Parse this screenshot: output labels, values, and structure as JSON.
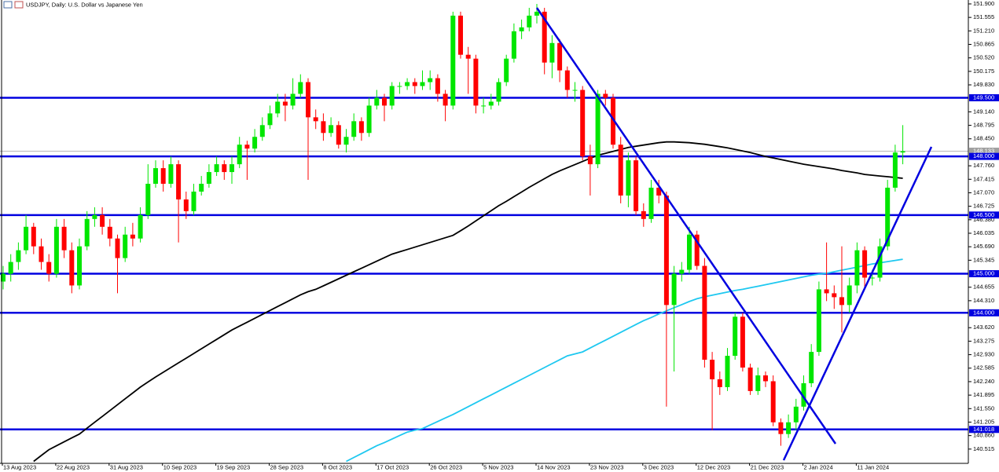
{
  "chart_data": {
    "type": "candlestick",
    "title": "USDJPY, Daily:  U.S. Dollar vs Japanese Yen",
    "categories": [
      "13 Aug 2023",
      null,
      null,
      null,
      null,
      null,
      null,
      "22 Aug 2023",
      null,
      null,
      null,
      null,
      null,
      null,
      "31 Aug 2023",
      null,
      null,
      null,
      null,
      null,
      null,
      "10 Sep 2023",
      null,
      null,
      null,
      null,
      null,
      null,
      "19 Sep 2023",
      null,
      null,
      null,
      null,
      null,
      null,
      "28 Sep 2023",
      null,
      null,
      null,
      null,
      null,
      null,
      "8 Oct 2023",
      null,
      null,
      null,
      null,
      null,
      null,
      "17 Oct 2023",
      null,
      null,
      null,
      null,
      null,
      null,
      "26 Oct 2023",
      null,
      null,
      null,
      null,
      null,
      null,
      "5 Nov 2023",
      null,
      null,
      null,
      null,
      null,
      null,
      "14 Nov 2023",
      null,
      null,
      null,
      null,
      null,
      null,
      "23 Nov 2023",
      null,
      null,
      null,
      null,
      null,
      null,
      "3 Dec 2023",
      null,
      null,
      null,
      null,
      null,
      null,
      "12 Dec 2023",
      null,
      null,
      null,
      null,
      null,
      null,
      "21 Dec 2023",
      null,
      null,
      null,
      null,
      null,
      null,
      "2 Jan 2024",
      null,
      null,
      null,
      null,
      null,
      null,
      "11 Jan 2024",
      null,
      null,
      null,
      null,
      null,
      null
    ],
    "open": [
      144.8,
      145.0,
      145.3,
      145.6,
      146.2,
      145.7,
      145.3,
      145.0,
      146.2,
      145.6,
      144.7,
      145.7,
      146.4,
      146.5,
      146.2,
      145.9,
      145.4,
      146.0,
      145.9,
      146.5,
      147.3,
      147.7,
      147.3,
      147.8,
      146.9,
      146.6,
      147.1,
      147.3,
      147.6,
      147.8,
      147.6,
      147.8,
      148.3,
      148.2,
      148.5,
      148.8,
      149.1,
      149.4,
      149.3,
      149.6,
      149.9,
      149.0,
      148.9,
      148.6,
      148.8,
      148.3,
      148.5,
      148.9,
      148.6,
      149.3,
      149.5,
      149.3,
      149.8,
      149.8,
      149.9,
      149.8,
      149.9,
      150.0,
      149.6,
      149.3,
      151.6,
      150.6,
      150.5,
      149.3,
      149.3,
      149.4,
      149.9,
      150.5,
      151.2,
      151.3,
      151.6,
      151.7,
      150.4,
      150.9,
      150.2,
      149.7,
      149.7,
      148.0,
      147.8,
      149.6,
      149.5,
      148.3,
      147.0,
      147.9,
      146.6,
      146.4,
      147.2,
      147.0,
      144.2,
      145.0,
      145.1,
      146.0,
      145.2,
      142.8,
      142.3,
      142.1,
      142.9,
      143.9,
      142.6,
      142.0,
      142.4,
      142.25,
      141.2,
      140.9,
      141.2,
      141.6,
      142.2,
      143.0,
      144.6,
      144.5,
      144.4,
      144.2,
      144.7,
      145.6,
      144.9,
      144.9,
      145.7,
      147.2,
      148.1
    ],
    "high": [
      145.2,
      145.5,
      145.8,
      146.5,
      146.3,
      145.9,
      145.5,
      146.4,
      146.4,
      145.8,
      145.9,
      146.6,
      146.7,
      146.7,
      146.4,
      146.0,
      146.2,
      146.3,
      146.7,
      147.8,
      147.9,
      147.9,
      148.0,
      147.9,
      147.1,
      147.3,
      147.5,
      147.8,
      148.0,
      147.9,
      148.0,
      148.5,
      148.4,
      148.7,
      149.0,
      149.3,
      149.6,
      149.6,
      150.0,
      150.1,
      150.0,
      149.2,
      149.1,
      149.0,
      148.9,
      148.7,
      149.1,
      149.0,
      149.5,
      149.7,
      149.6,
      149.9,
      149.9,
      150.0,
      150.0,
      150.2,
      150.2,
      150.1,
      149.7,
      151.7,
      151.7,
      150.8,
      150.6,
      149.5,
      149.6,
      150.0,
      150.6,
      151.4,
      151.5,
      151.8,
      151.9,
      151.8,
      151.1,
      151.0,
      150.3,
      149.9,
      149.8,
      148.3,
      149.7,
      149.7,
      149.6,
      148.5,
      148.1,
      148.0,
      146.8,
      147.4,
      147.4,
      147.1,
      145.2,
      145.3,
      146.2,
      146.1,
      145.4,
      143.0,
      142.5,
      143.1,
      144.0,
      144.0,
      142.7,
      142.6,
      142.5,
      142.4,
      141.3,
      141.4,
      141.8,
      142.4,
      143.2,
      144.8,
      145.8,
      144.7,
      145.7,
      144.9,
      145.8,
      145.7,
      145.1,
      145.9,
      147.4,
      148.3,
      148.8
    ],
    "low": [
      144.6,
      144.8,
      145.1,
      145.5,
      145.5,
      145.1,
      144.8,
      144.9,
      145.4,
      144.5,
      144.6,
      145.6,
      146.2,
      146.0,
      145.7,
      144.5,
      145.3,
      145.7,
      145.8,
      146.4,
      147.2,
      147.1,
      147.2,
      145.8,
      146.4,
      146.5,
      147.0,
      147.2,
      147.5,
      147.4,
      147.3,
      147.7,
      147.4,
      148.1,
      148.4,
      148.7,
      149.0,
      148.9,
      149.2,
      149.5,
      147.4,
      148.7,
      148.4,
      148.5,
      148.2,
      148.1,
      148.4,
      148.4,
      148.5,
      149.2,
      148.9,
      149.2,
      149.6,
      149.7,
      149.6,
      149.7,
      149.7,
      149.4,
      148.9,
      149.2,
      150.5,
      149.6,
      149.1,
      149.1,
      149.2,
      149.3,
      149.8,
      150.4,
      151.0,
      151.2,
      151.4,
      150.1,
      150.0,
      149.9,
      149.5,
      149.4,
      147.9,
      147.0,
      147.7,
      149.3,
      148.2,
      146.8,
      146.7,
      146.5,
      146.2,
      146.3,
      146.8,
      141.6,
      142.5,
      144.8,
      145.0,
      145.1,
      142.6,
      141.0,
      141.9,
      142.0,
      142.8,
      142.5,
      141.9,
      141.9,
      142.1,
      141.1,
      140.6,
      140.8,
      141.0,
      141.5,
      142.1,
      142.9,
      144.3,
      144.1,
      143.5,
      144.0,
      144.5,
      144.6,
      144.7,
      144.8,
      145.6,
      147.1,
      147.8
    ],
    "close": [
      145.0,
      145.3,
      145.6,
      146.2,
      145.7,
      145.3,
      145.0,
      146.2,
      145.6,
      144.7,
      145.7,
      146.4,
      146.5,
      146.2,
      145.9,
      145.4,
      146.0,
      145.9,
      146.5,
      147.3,
      147.7,
      147.3,
      147.8,
      146.9,
      146.6,
      147.1,
      147.3,
      147.6,
      147.8,
      147.6,
      147.8,
      148.3,
      148.2,
      148.5,
      148.8,
      149.1,
      149.4,
      149.3,
      149.6,
      149.9,
      149.0,
      148.9,
      148.6,
      148.8,
      148.3,
      148.5,
      148.9,
      148.6,
      149.3,
      149.5,
      149.3,
      149.8,
      149.8,
      149.9,
      149.8,
      149.9,
      150.0,
      149.6,
      149.3,
      151.6,
      150.6,
      150.5,
      149.3,
      149.3,
      149.4,
      149.9,
      150.5,
      151.2,
      151.3,
      151.6,
      151.7,
      150.4,
      150.9,
      150.2,
      149.7,
      149.7,
      148.0,
      147.8,
      149.6,
      149.5,
      148.3,
      147.0,
      147.9,
      146.6,
      146.4,
      147.2,
      147.0,
      144.2,
      145.0,
      145.1,
      146.0,
      145.2,
      142.8,
      142.3,
      142.1,
      142.9,
      143.9,
      142.6,
      142.0,
      142.4,
      142.25,
      141.2,
      140.9,
      141.2,
      141.6,
      142.2,
      143.0,
      144.6,
      144.5,
      144.4,
      144.2,
      144.7,
      145.6,
      144.9,
      144.9,
      145.7,
      147.2,
      148.1,
      148.133
    ],
    "up_color": "#00e600",
    "down_color": "#ff0000",
    "moving_averages": [
      {
        "color": "#000000",
        "values": [
          null,
          null,
          null,
          null,
          140.2,
          140.35,
          140.5,
          140.6,
          140.7,
          140.8,
          140.9,
          141.05,
          141.2,
          141.35,
          141.5,
          141.65,
          141.8,
          141.95,
          142.1,
          142.23,
          142.36,
          142.48,
          142.6,
          142.72,
          142.84,
          142.96,
          143.08,
          143.2,
          143.32,
          143.44,
          143.56,
          143.66,
          143.76,
          143.86,
          143.96,
          144.06,
          144.16,
          144.26,
          144.36,
          144.46,
          144.54,
          144.6,
          144.69,
          144.78,
          144.87,
          144.96,
          145.05,
          145.14,
          145.23,
          145.32,
          145.41,
          145.5,
          145.56,
          145.62,
          145.68,
          145.74,
          145.8,
          145.86,
          145.92,
          145.98,
          146.1,
          146.22,
          146.35,
          146.48,
          146.61,
          146.74,
          146.85,
          146.97,
          147.09,
          147.21,
          147.32,
          147.43,
          147.54,
          147.63,
          147.71,
          147.79,
          147.87,
          147.95,
          148.03,
          148.08,
          148.13,
          148.18,
          148.23,
          148.26,
          148.29,
          148.32,
          148.35,
          148.37,
          148.37,
          148.36,
          148.35,
          148.33,
          148.31,
          148.28,
          148.25,
          148.22,
          148.18,
          148.14,
          148.1,
          148.05,
          148.0,
          147.96,
          147.92,
          147.88,
          147.84,
          147.8,
          147.77,
          147.74,
          147.71,
          147.68,
          147.64,
          147.61,
          147.58,
          147.54,
          147.52,
          147.5,
          147.48,
          147.46,
          147.44
        ]
      },
      {
        "color": "#1ec8f0",
        "values": [
          null,
          null,
          null,
          null,
          null,
          null,
          null,
          null,
          null,
          null,
          null,
          null,
          null,
          null,
          null,
          null,
          null,
          null,
          null,
          null,
          null,
          null,
          null,
          null,
          null,
          null,
          null,
          null,
          null,
          null,
          null,
          null,
          null,
          null,
          null,
          null,
          null,
          null,
          null,
          null,
          null,
          null,
          null,
          null,
          null,
          140.2,
          140.3,
          140.4,
          140.5,
          140.6,
          140.68,
          140.77,
          140.86,
          140.95,
          141.0,
          141.04,
          141.13,
          141.22,
          141.31,
          141.4,
          141.5,
          141.6,
          141.7,
          141.8,
          141.9,
          142.0,
          142.1,
          142.2,
          142.3,
          142.4,
          142.5,
          142.6,
          142.7,
          142.8,
          142.9,
          142.95,
          143.0,
          143.1,
          143.2,
          143.3,
          143.4,
          143.5,
          143.6,
          143.7,
          143.8,
          143.88,
          143.97,
          144.05,
          144.13,
          144.21,
          144.29,
          144.36,
          144.41,
          144.45,
          144.49,
          144.53,
          144.57,
          144.6,
          144.64,
          144.68,
          144.72,
          144.76,
          144.8,
          144.84,
          144.88,
          144.92,
          144.96,
          144.99,
          145.01,
          145.05,
          145.09,
          145.13,
          145.17,
          145.21,
          145.25,
          145.28,
          145.31,
          145.34,
          145.37
        ]
      }
    ],
    "levels": [
      {
        "value": 149.5,
        "label": "149.500"
      },
      {
        "value": 148.0,
        "label": "148.000"
      },
      {
        "value": 146.5,
        "label": "146.500"
      },
      {
        "value": 145.0,
        "label": "145.000"
      },
      {
        "value": 144.0,
        "label": "144.000"
      },
      {
        "value": 141.018,
        "label": "141.018"
      }
    ],
    "level_color": "#0000e0",
    "last_price": {
      "value": 148.133,
      "label": "148.133"
    },
    "ylim": [
      140.15,
      152.0
    ],
    "yticks": [
      {
        "value": 151.9,
        "label": "151.900"
      },
      {
        "value": 151.555,
        "label": "151.555"
      },
      {
        "value": 151.21,
        "label": "151.210"
      },
      {
        "value": 150.865,
        "label": "150.865"
      },
      {
        "value": 150.52,
        "label": "150.520"
      },
      {
        "value": 150.175,
        "label": "150.175"
      },
      {
        "value": 149.83,
        "label": "149.830"
      },
      {
        "value": 149.14,
        "label": "149.140"
      },
      {
        "value": 148.795,
        "label": "148.795"
      },
      {
        "value": 148.45,
        "label": "148.450"
      },
      {
        "value": 147.76,
        "label": "147.760"
      },
      {
        "value": 147.415,
        "label": "147.415"
      },
      {
        "value": 147.07,
        "label": "147.070"
      },
      {
        "value": 146.725,
        "label": "146.725"
      },
      {
        "value": 146.38,
        "label": "146.380"
      },
      {
        "value": 146.035,
        "label": "146.035"
      },
      {
        "value": 145.69,
        "label": "145.690"
      },
      {
        "value": 145.345,
        "label": "145.345"
      },
      {
        "value": 144.655,
        "label": "144.655"
      },
      {
        "value": 144.31,
        "label": "144.310"
      },
      {
        "value": 143.62,
        "label": "143.620"
      },
      {
        "value": 143.275,
        "label": "143.275"
      },
      {
        "value": 142.93,
        "label": "142.930"
      },
      {
        "value": 142.585,
        "label": "142.585"
      },
      {
        "value": 142.24,
        "label": "142.240"
      },
      {
        "value": 141.895,
        "label": "141.895"
      },
      {
        "value": 141.55,
        "label": "141.550"
      },
      {
        "value": 141.205,
        "label": "141.205"
      },
      {
        "value": 140.86,
        "label": "140.860"
      },
      {
        "value": 140.515,
        "label": "140.515"
      }
    ],
    "grid": false
  }
}
